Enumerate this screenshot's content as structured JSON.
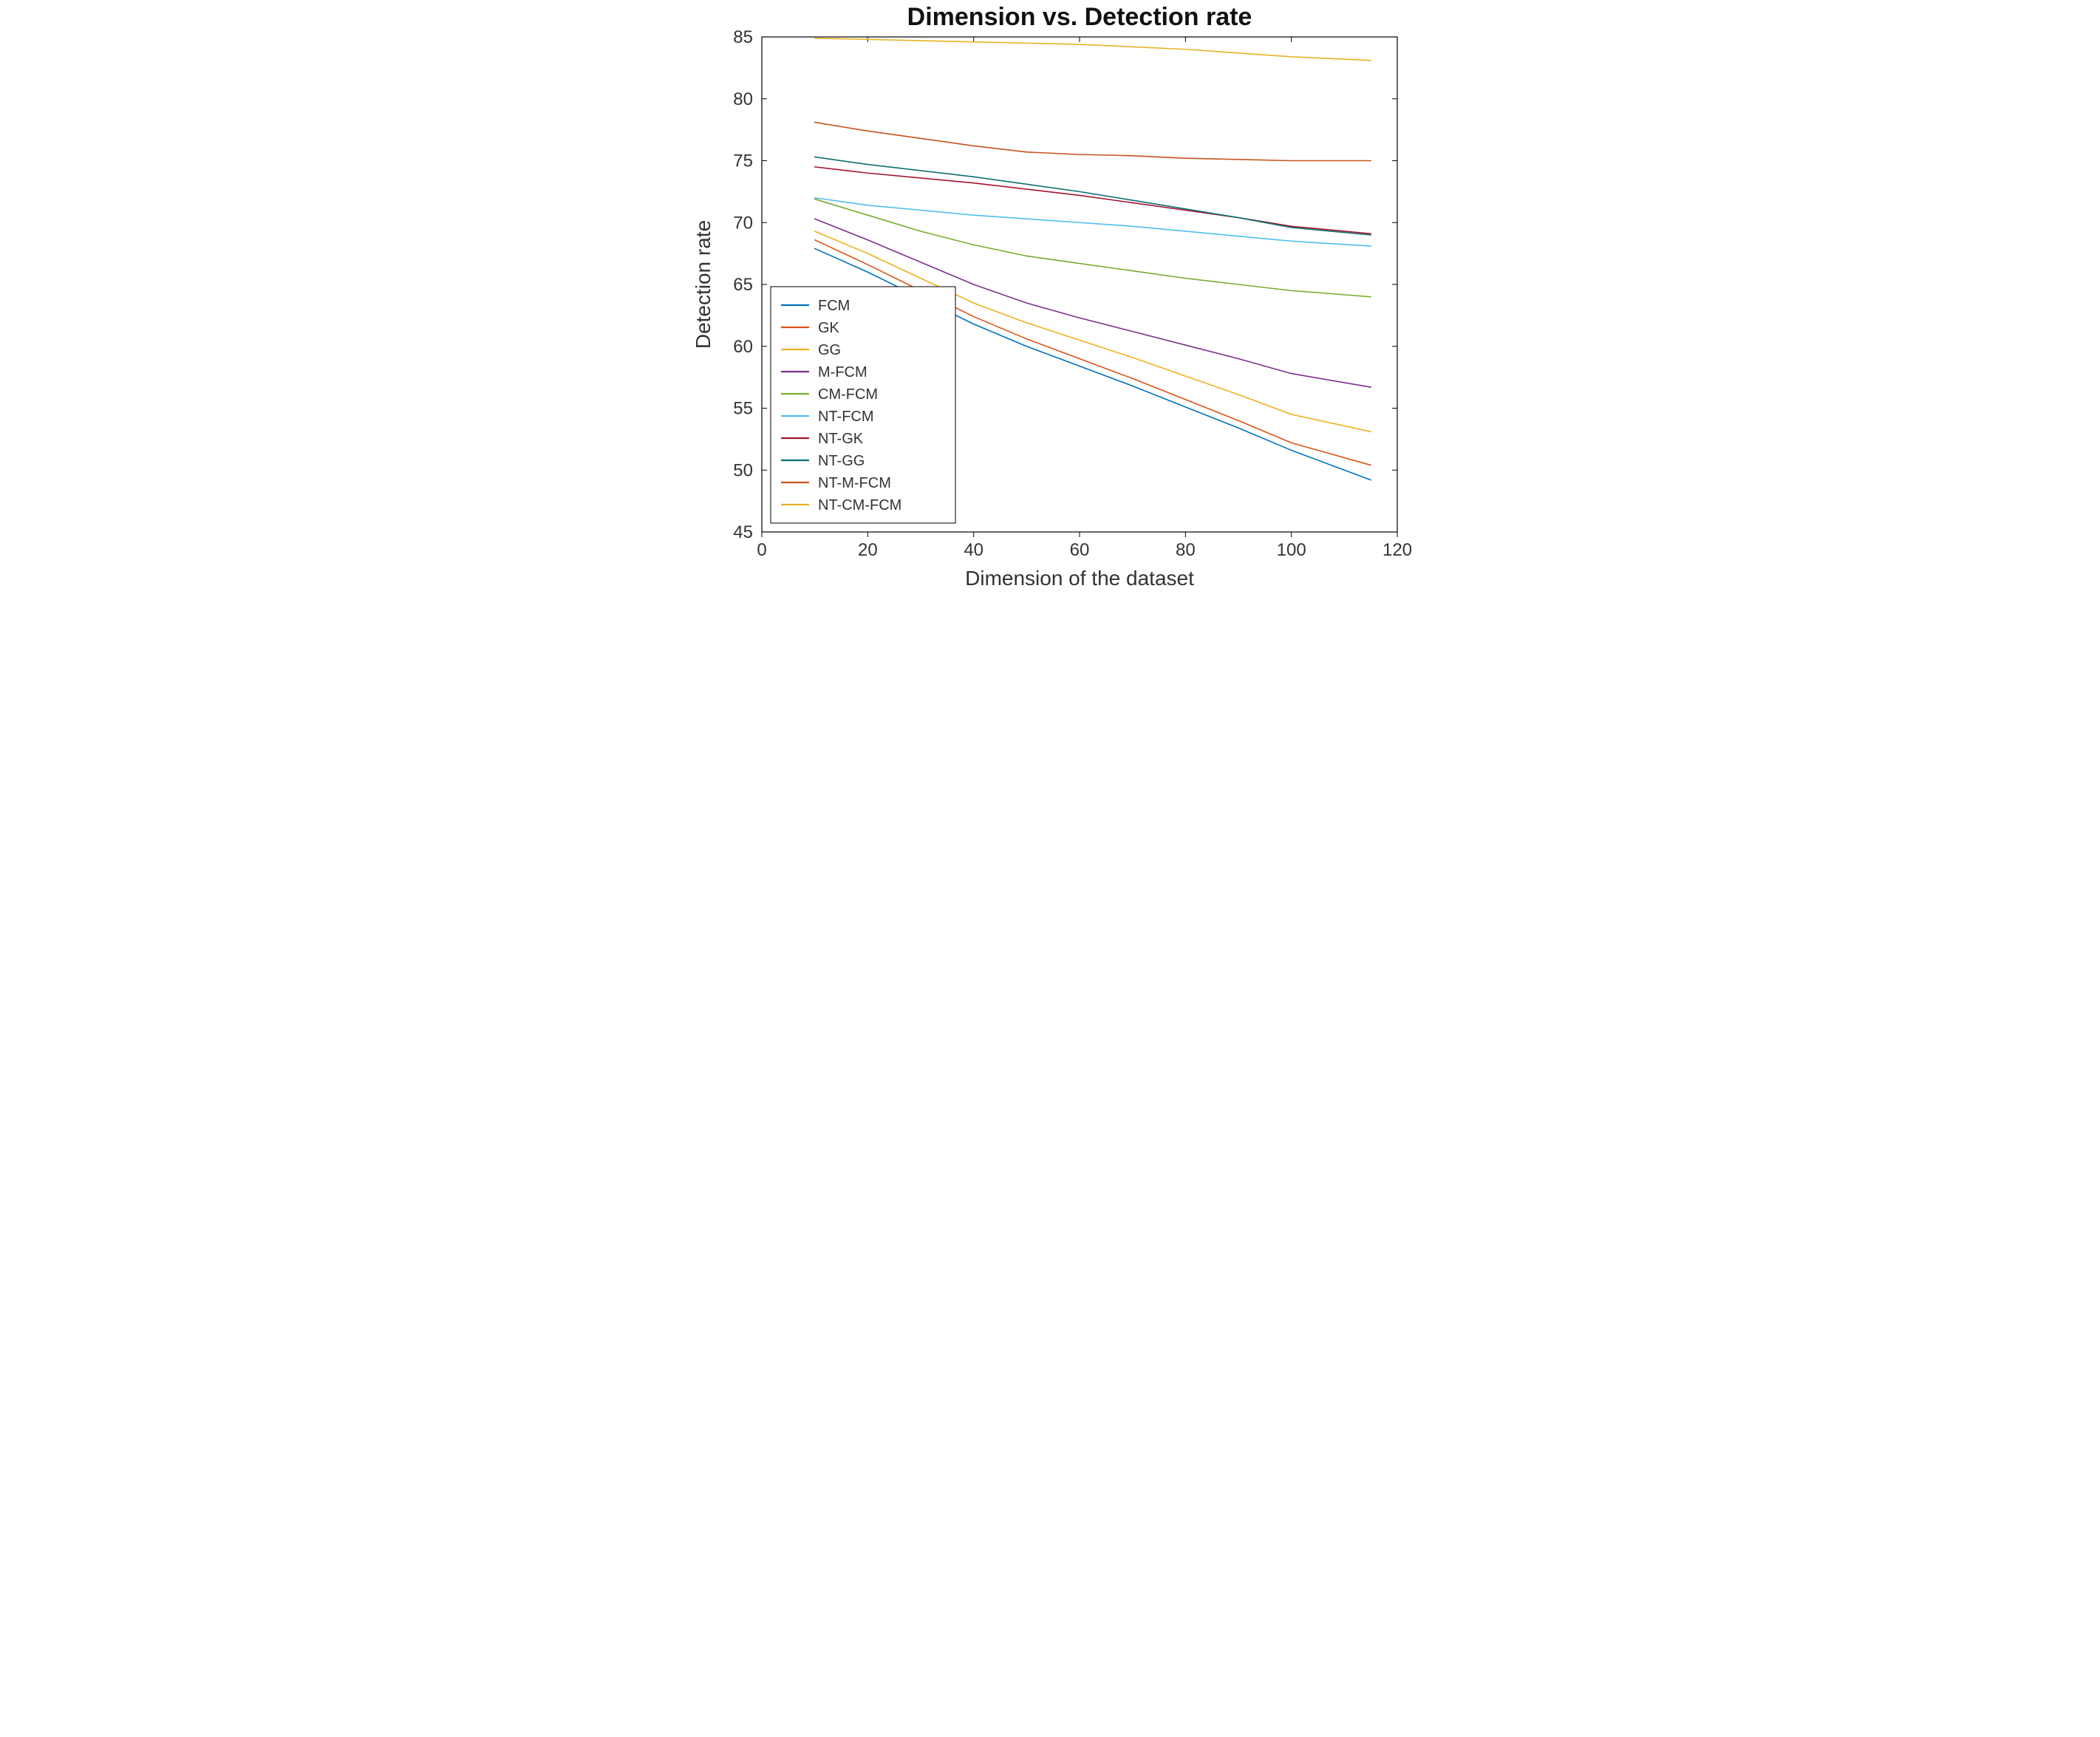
{
  "chart": {
    "type": "line",
    "title": "Dimension vs. Detection rate",
    "title_fontsize": 34,
    "title_fontweight": "bold",
    "xlabel": "Dimension of the dataset",
    "ylabel": "Detection rate",
    "label_fontsize": 28,
    "tick_fontsize": 24,
    "background_color": "#ffffff",
    "axis_color": "#000000",
    "xlim": [
      0,
      120
    ],
    "ylim": [
      45,
      85
    ],
    "xticks": [
      0,
      20,
      40,
      60,
      80,
      100,
      120
    ],
    "yticks": [
      45,
      50,
      55,
      60,
      65,
      70,
      75,
      80,
      85
    ],
    "line_width": 1.6,
    "series": [
      {
        "name": "FCM",
        "color": "#0072bd",
        "x": [
          10,
          20,
          30,
          40,
          50,
          60,
          70,
          80,
          90,
          100,
          115
        ],
        "y": [
          67.9,
          66.0,
          63.9,
          61.8,
          60.0,
          58.4,
          56.8,
          55.1,
          53.4,
          51.6,
          49.2
        ]
      },
      {
        "name": "GK",
        "color": "#d95319",
        "x": [
          10,
          20,
          30,
          40,
          50,
          60,
          70,
          80,
          90,
          100,
          115
        ],
        "y": [
          68.6,
          66.6,
          64.5,
          62.4,
          60.6,
          59.0,
          57.4,
          55.7,
          54.0,
          52.2,
          50.4
        ]
      },
      {
        "name": "GG",
        "color": "#edb120",
        "x": [
          10,
          20,
          30,
          40,
          50,
          60,
          70,
          80,
          90,
          100,
          115
        ],
        "y": [
          69.3,
          67.5,
          65.5,
          63.5,
          61.9,
          60.5,
          59.1,
          57.6,
          56.1,
          54.5,
          53.1
        ]
      },
      {
        "name": "M-FCM",
        "color": "#7e2f8e",
        "x": [
          10,
          20,
          30,
          40,
          50,
          60,
          70,
          80,
          90,
          100,
          115
        ],
        "y": [
          70.3,
          68.6,
          66.8,
          65.0,
          63.5,
          62.3,
          61.2,
          60.1,
          59.0,
          57.8,
          56.7
        ]
      },
      {
        "name": "CM-FCM",
        "color": "#77ac30",
        "x": [
          10,
          20,
          30,
          40,
          50,
          60,
          70,
          80,
          90,
          100,
          115
        ],
        "y": [
          71.9,
          70.6,
          69.3,
          68.2,
          67.3,
          66.7,
          66.1,
          65.5,
          65.0,
          64.5,
          64.0
        ]
      },
      {
        "name": "NT-FCM",
        "color": "#4dbeee",
        "x": [
          10,
          20,
          30,
          40,
          50,
          60,
          70,
          80,
          90,
          100,
          115
        ],
        "y": [
          72.0,
          71.4,
          71.0,
          70.6,
          70.3,
          70.0,
          69.7,
          69.3,
          68.9,
          68.5,
          68.1
        ]
      },
      {
        "name": "NT-GK",
        "color": "#a2142f",
        "x": [
          10,
          20,
          30,
          40,
          50,
          60,
          70,
          80,
          90,
          100,
          115
        ],
        "y": [
          74.5,
          74.0,
          73.6,
          73.2,
          72.7,
          72.2,
          71.6,
          71.0,
          70.4,
          69.7,
          69.1
        ]
      },
      {
        "name": "NT-GG",
        "color": "#0d6f72",
        "x": [
          10,
          20,
          30,
          40,
          50,
          60,
          70,
          80,
          90,
          100,
          115
        ],
        "y": [
          75.3,
          74.7,
          74.2,
          73.7,
          73.1,
          72.5,
          71.8,
          71.1,
          70.4,
          69.6,
          69.0
        ]
      },
      {
        "name": "NT-M-FCM",
        "color": "#c6531d",
        "x": [
          10,
          20,
          30,
          40,
          50,
          60,
          70,
          80,
          90,
          100,
          115
        ],
        "y": [
          78.1,
          77.4,
          76.8,
          76.2,
          75.7,
          75.5,
          75.4,
          75.2,
          75.1,
          75.0,
          75.0
        ]
      },
      {
        "name": "NT-CM-FCM",
        "color": "#e8b324",
        "x": [
          10,
          20,
          30,
          40,
          50,
          60,
          70,
          80,
          90,
          100,
          115
        ],
        "y": [
          84.9,
          84.8,
          84.7,
          84.6,
          84.5,
          84.4,
          84.2,
          84.0,
          83.7,
          83.4,
          83.1
        ]
      }
    ],
    "legend": {
      "position": "lower-left",
      "box_color": "#000000",
      "background": "#ffffff",
      "fontsize": 20,
      "swatch_length": 38
    }
  }
}
